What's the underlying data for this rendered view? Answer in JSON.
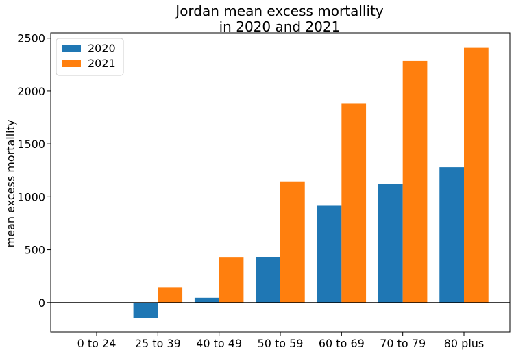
{
  "chart_data": {
    "type": "bar",
    "title_lines": [
      "Jordan mean excess mortallity",
      "in 2020 and 2021"
    ],
    "xlabel": "",
    "ylabel": "mean excess mortallity",
    "categories": [
      "0 to 24",
      "25 to 39",
      "40 to 49",
      "50 to 59",
      "60 to 69",
      "70 to 79",
      "80 plus"
    ],
    "series": [
      {
        "name": "2020",
        "color": "#1f77b4",
        "values": [
          0,
          -150,
          45,
          430,
          915,
          1120,
          1280
        ]
      },
      {
        "name": "2021",
        "color": "#ff7f0e",
        "values": [
          0,
          145,
          425,
          1140,
          1880,
          2285,
          2410
        ]
      }
    ],
    "ylim": [
      -280,
      2550
    ],
    "yticks": [
      0,
      500,
      1000,
      1500,
      2000,
      2500
    ],
    "zero_line": true,
    "grid": false,
    "legend_position": "top-left"
  }
}
